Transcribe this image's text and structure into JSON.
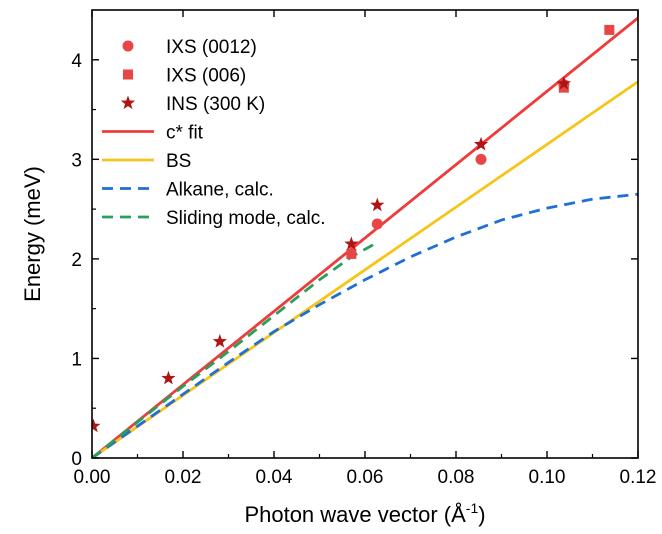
{
  "chart_data": {
    "type": "scatter",
    "xlabel": "Photon wave vector (Å",
    "xlabel_sup": "-1",
    "xlabel_close": ")",
    "ylabel": "Energy (meV)",
    "xlim": [
      0,
      0.12
    ],
    "ylim": [
      0,
      4.5
    ],
    "x_ticks": [
      "0.00",
      "0.02",
      "0.04",
      "0.06",
      "0.08",
      "0.10",
      "0.12"
    ],
    "x_tick_values": [
      0,
      0.02,
      0.04,
      0.06,
      0.08,
      0.1,
      0.12
    ],
    "y_ticks": [
      "0",
      "1",
      "2",
      "3",
      "4"
    ],
    "y_tick_values": [
      0,
      1,
      2,
      3,
      4
    ],
    "grid": false,
    "legend_position": "top-left",
    "series": [
      {
        "name": "IXS (0012)",
        "kind": "marker",
        "marker": "circle",
        "color": "#e84545",
        "points": [
          [
            0.0627,
            2.35
          ],
          [
            0.0855,
            3.0
          ],
          [
            0.1037,
            3.75
          ]
        ]
      },
      {
        "name": "IXS (006)",
        "kind": "marker",
        "marker": "square",
        "color": "#e84545",
        "points": [
          [
            0.057,
            2.05
          ],
          [
            0.1037,
            3.72
          ],
          [
            0.1137,
            4.3
          ]
        ]
      },
      {
        "name": "INS (300 K)",
        "kind": "marker",
        "marker": "star",
        "color": "#b01515",
        "points": [
          [
            0.0003,
            0.32
          ],
          [
            0.0168,
            0.8
          ],
          [
            0.0281,
            1.17
          ],
          [
            0.057,
            2.15
          ],
          [
            0.0627,
            2.54
          ],
          [
            0.0855,
            3.15
          ],
          [
            0.1037,
            3.76
          ]
        ]
      },
      {
        "name": "c* fit",
        "kind": "line",
        "style": "solid",
        "color": "#ee3b3b",
        "points": [
          [
            0,
            0
          ],
          [
            0.12,
            4.42
          ]
        ]
      },
      {
        "name": "BS",
        "kind": "line",
        "style": "solid",
        "color": "#f6c51a",
        "points": [
          [
            0,
            0
          ],
          [
            0.12,
            3.78
          ]
        ]
      },
      {
        "name": "Alkane, calc.",
        "kind": "line",
        "style": "dashed",
        "color": "#1f6fd6",
        "points": [
          [
            0,
            0
          ],
          [
            0.01,
            0.32
          ],
          [
            0.02,
            0.64
          ],
          [
            0.03,
            0.96
          ],
          [
            0.04,
            1.27
          ],
          [
            0.05,
            1.54
          ],
          [
            0.06,
            1.79
          ],
          [
            0.07,
            2.02
          ],
          [
            0.08,
            2.22
          ],
          [
            0.09,
            2.39
          ],
          [
            0.1,
            2.51
          ],
          [
            0.11,
            2.6
          ],
          [
            0.12,
            2.65
          ]
        ]
      },
      {
        "name": "Sliding mode, calc.",
        "kind": "line",
        "style": "dashed",
        "color": "#27a05a",
        "points": [
          [
            0,
            0
          ],
          [
            0.01,
            0.36
          ],
          [
            0.02,
            0.72
          ],
          [
            0.03,
            1.07
          ],
          [
            0.04,
            1.43
          ],
          [
            0.05,
            1.79
          ],
          [
            0.057,
            2.02
          ],
          [
            0.0625,
            2.16
          ]
        ]
      }
    ]
  }
}
